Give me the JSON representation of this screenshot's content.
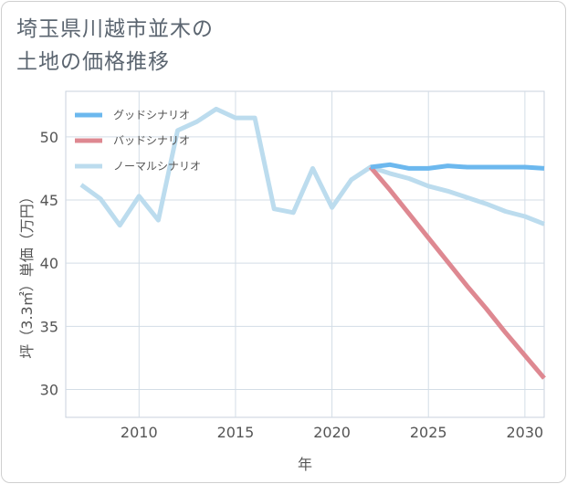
{
  "chart_data": {
    "type": "line",
    "title_lines": [
      "埼玉県川越市並木の",
      "土地の価格推移"
    ],
    "xlabel": "年",
    "ylabel": "坪（3.3㎡）単価（万円）",
    "xlim": [
      2006.2,
      2031.0
    ],
    "ylim": [
      27.8,
      53.6
    ],
    "x_ticks": [
      2010,
      2015,
      2020,
      2025,
      2030
    ],
    "y_ticks": [
      30,
      35,
      40,
      45,
      50
    ],
    "grid": true,
    "legend_position": "top-left",
    "series": [
      {
        "name": "グッドシナリオ",
        "color": "#6cb8ee",
        "x": [
          2022,
          2023,
          2024,
          2025,
          2026,
          2027,
          2028,
          2029,
          2030,
          2031
        ],
        "y": [
          47.6,
          47.8,
          47.5,
          47.5,
          47.7,
          47.6,
          47.6,
          47.6,
          47.6,
          47.5
        ]
      },
      {
        "name": "バッドシナリオ",
        "color": "#de8891",
        "x": [
          2022,
          2023,
          2024,
          2025,
          2026,
          2027,
          2028,
          2029,
          2030,
          2031
        ],
        "y": [
          47.6,
          45.8,
          43.9,
          42.0,
          40.1,
          38.2,
          36.4,
          34.5,
          32.7,
          30.9
        ]
      },
      {
        "name": "ノーマルシナリオ",
        "color": "#bcdcee",
        "x": [
          2007,
          2008,
          2009,
          2010,
          2011,
          2012,
          2013,
          2014,
          2015,
          2016,
          2017,
          2018,
          2019,
          2020,
          2021,
          2022,
          2023,
          2024,
          2025,
          2026,
          2027,
          2028,
          2029,
          2030,
          2031
        ],
        "y": [
          46.2,
          45.1,
          43.0,
          45.3,
          43.4,
          50.5,
          51.2,
          52.2,
          51.5,
          51.5,
          44.3,
          44.0,
          47.5,
          44.4,
          46.6,
          47.6,
          47.1,
          46.7,
          46.1,
          45.7,
          45.2,
          44.7,
          44.1,
          43.7,
          43.1
        ]
      }
    ]
  }
}
